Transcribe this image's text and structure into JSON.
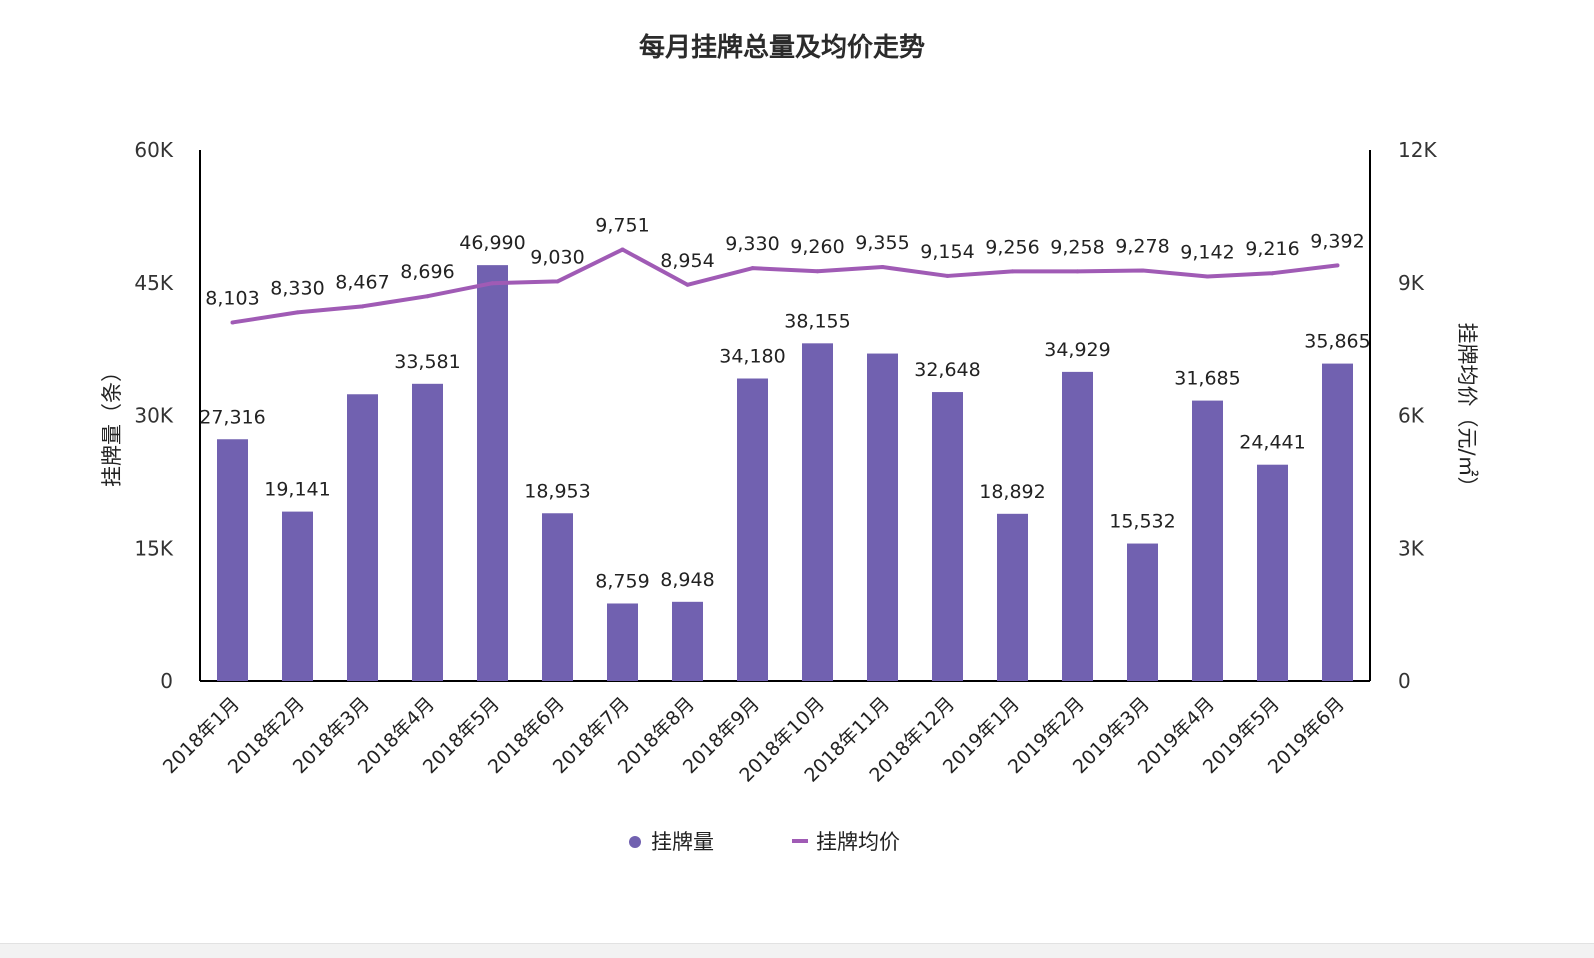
{
  "chart_data": {
    "type": "bar",
    "title": "每月挂牌总量及均价走势",
    "categories": [
      "2018年1月",
      "2018年2月",
      "2018年3月",
      "2018年4月",
      "2018年5月",
      "2018年6月",
      "2018年7月",
      "2018年8月",
      "2018年9月",
      "2018年10月",
      "2018年11月",
      "2018年12月",
      "2019年1月",
      "2019年2月",
      "2019年3月",
      "2019年4月",
      "2019年5月",
      "2019年6月"
    ],
    "series": [
      {
        "name": "挂牌量",
        "type": "bar",
        "axis": "left",
        "color": "#7161B0",
        "values": [
          27316,
          19141,
          32400,
          33581,
          46990,
          18953,
          8759,
          8948,
          34180,
          38155,
          37000,
          32648,
          18892,
          34929,
          15532,
          31685,
          24441,
          35865
        ],
        "labels": [
          "27,316",
          "19,141",
          "",
          "33,581",
          "46,990",
          "18,953",
          "8,759",
          "8,948",
          "34,180",
          "38,155",
          "",
          "32,648",
          "18,892",
          "34,929",
          "15,532",
          "31,685",
          "24,441",
          "35,865"
        ]
      },
      {
        "name": "挂牌均价",
        "type": "line",
        "axis": "right",
        "color": "#A05BB5",
        "values": [
          8103,
          8330,
          8467,
          8696,
          8990,
          9030,
          9751,
          8954,
          9330,
          9260,
          9355,
          9154,
          9256,
          9258,
          9278,
          9142,
          9216,
          9392
        ],
        "labels": [
          "8,103",
          "8,330",
          "8,467",
          "8,696",
          "",
          "9,030",
          "9,751",
          "8,954",
          "9,330",
          "9,260",
          "9,355",
          "9,154",
          "9,256",
          "9,258",
          "9,278",
          "9,142",
          "9,216",
          "9,392"
        ]
      }
    ],
    "ylabel": "挂牌量（条）",
    "ylabel_right": "挂牌均价（元/㎡）",
    "ylim": [
      0,
      60000
    ],
    "ylim_right": [
      0,
      12000
    ],
    "yticks": [
      "0",
      "15K",
      "30K",
      "45K",
      "60K"
    ],
    "yticks_right": [
      "0",
      "3K",
      "6K",
      "9K",
      "12K"
    ],
    "grid": false,
    "legend_position": "bottom"
  }
}
